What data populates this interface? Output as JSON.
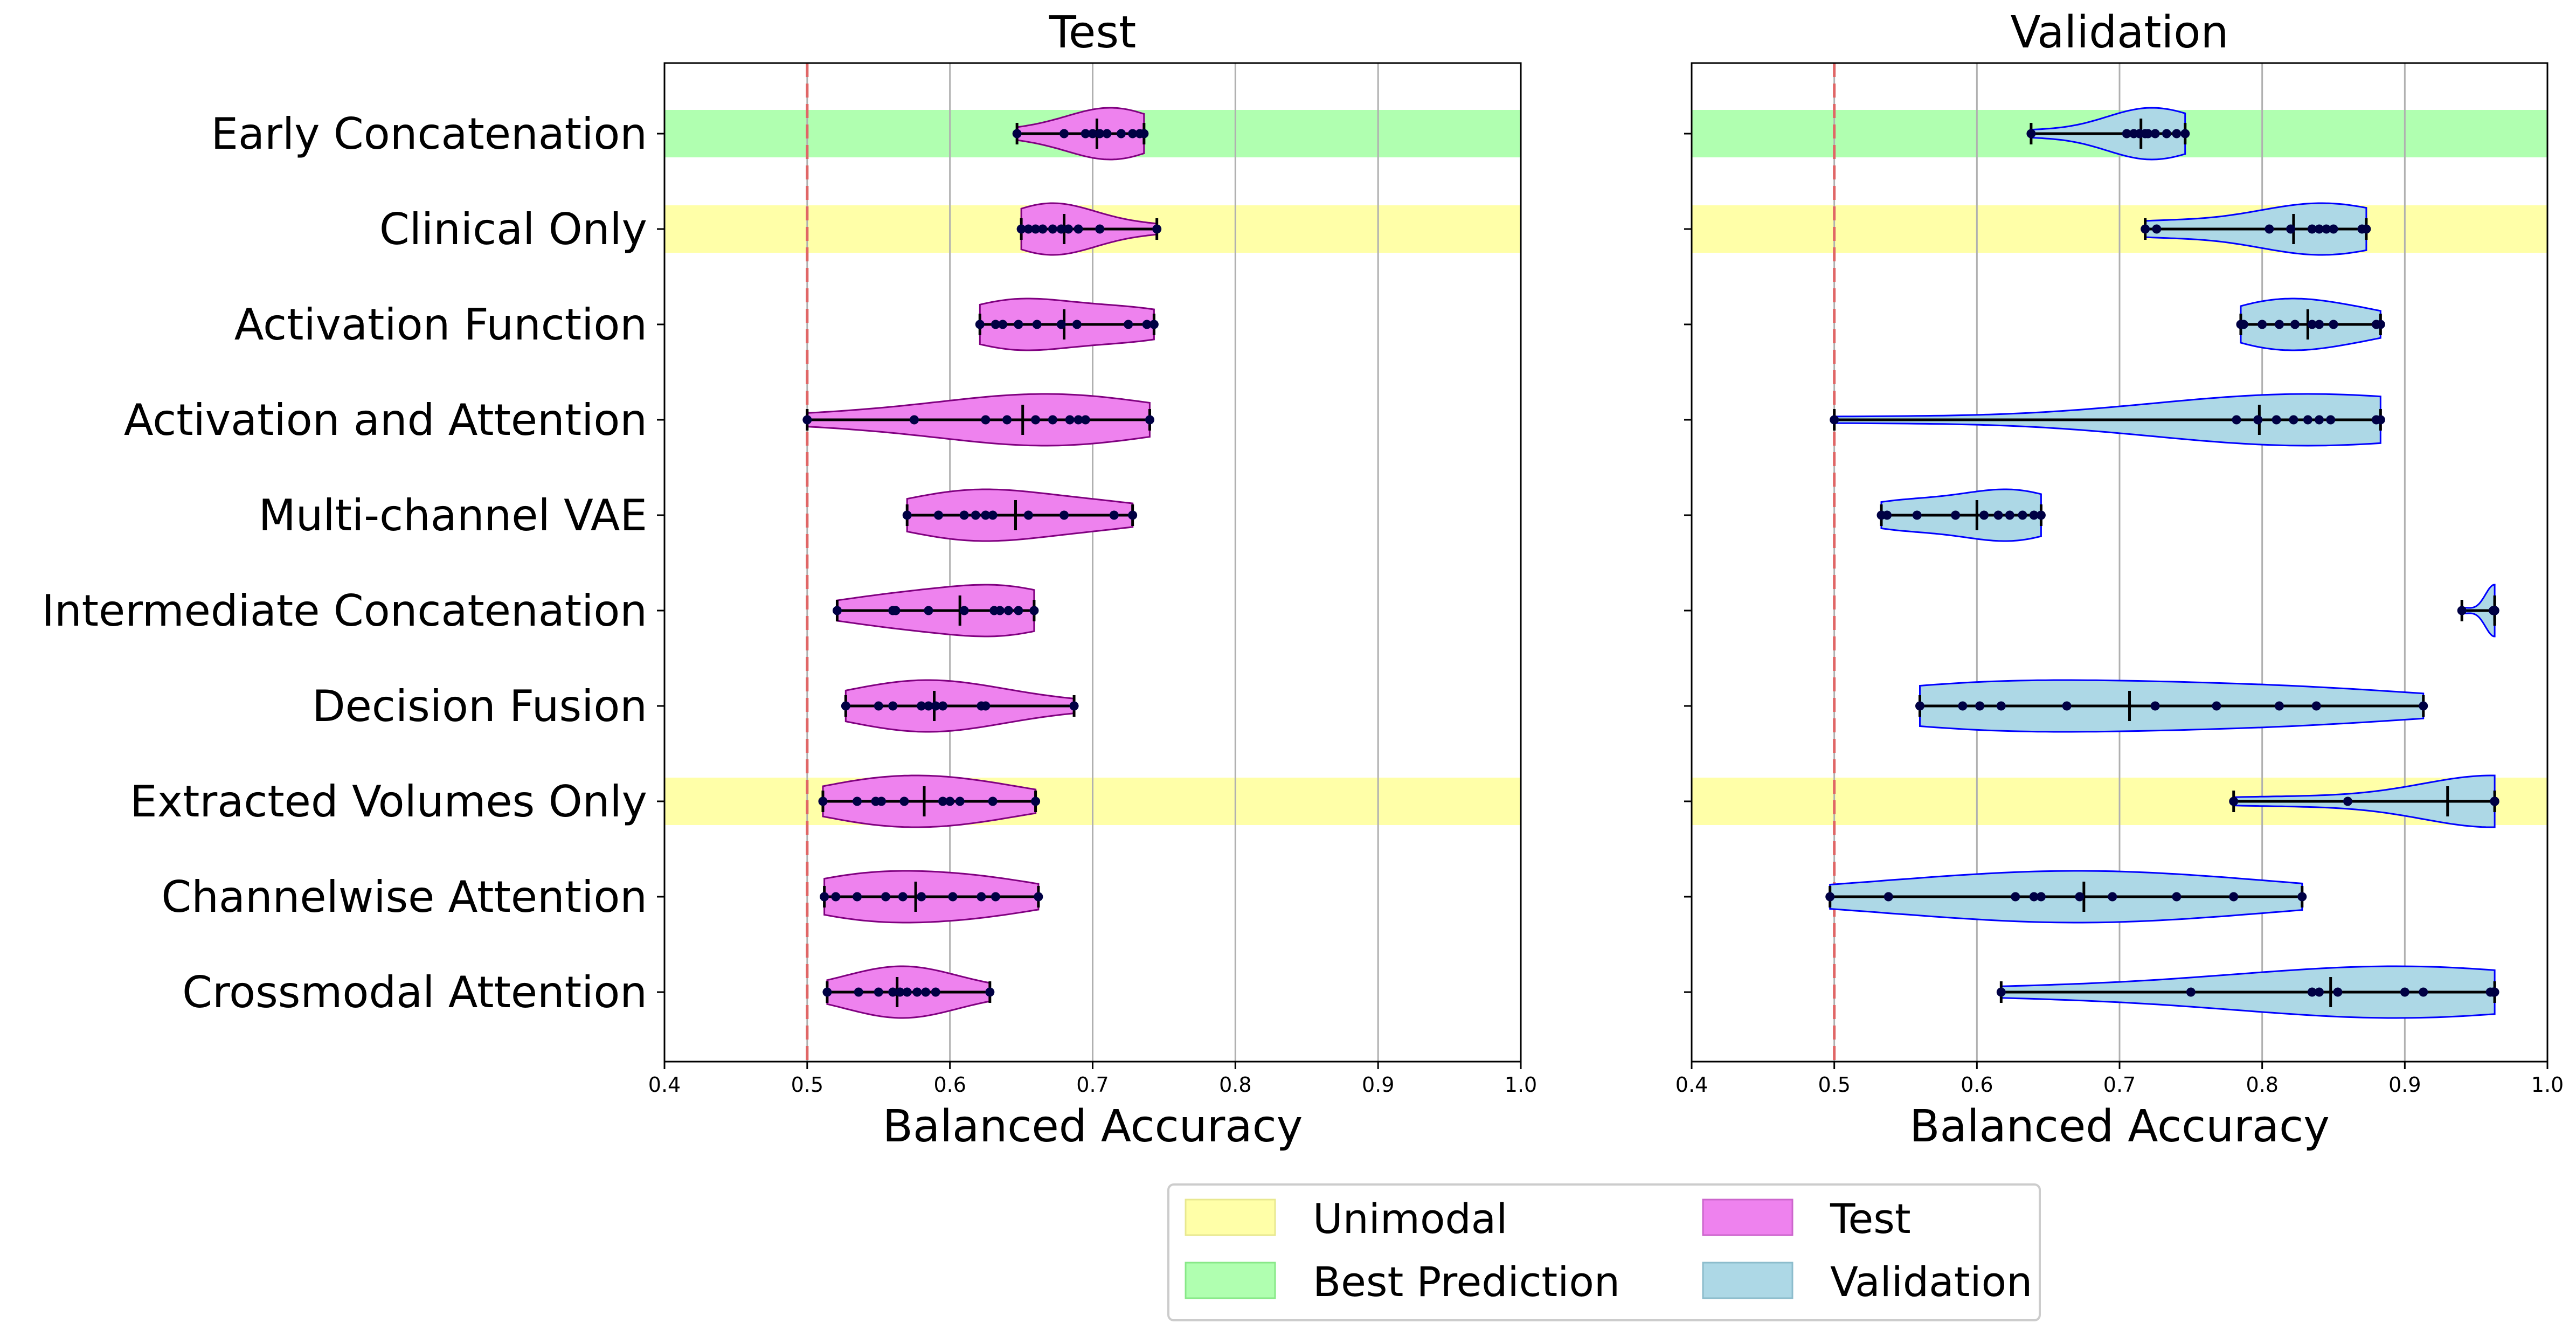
{
  "colors": {
    "unimodal": "#ffffa8",
    "best": "#b0ffb0",
    "test_fill": "#ee82ee",
    "test_edge": "#800080",
    "val_fill": "#add8e6",
    "val_edge": "#0000ff",
    "dots": "#000044",
    "ref_line": "#e06666",
    "grid": "#b0b0b0"
  },
  "chart_data": [
    {
      "type": "violin",
      "title": "Test",
      "xlabel": "Balanced Accuracy",
      "xlim": [
        0.4,
        1.0
      ],
      "xticks": [
        "0.4",
        "0.5",
        "0.6",
        "0.7",
        "0.8",
        "0.9",
        "1.0"
      ],
      "reference_line": 0.5,
      "grid": "vertical",
      "categories": [
        "Early Concatenation",
        "Clinical Only",
        "Activation Function",
        "Activation and Attention",
        "Multi-channel VAE",
        "Intermediate Concatenation",
        "Decision Fusion",
        "Extracted Volumes Only",
        "Channelwise Attention",
        "Crossmodal Attention"
      ],
      "highlights": [
        {
          "category": "Early Concatenation",
          "kind": "best"
        },
        {
          "category": "Clinical Only",
          "kind": "unimodal"
        },
        {
          "category": "Extracted Volumes Only",
          "kind": "unimodal"
        }
      ],
      "series": [
        {
          "category": "Early Concatenation",
          "min": 0.647,
          "max": 0.736,
          "median": 0.703,
          "points": [
            0.647,
            0.68,
            0.695,
            0.7,
            0.705,
            0.71,
            0.72,
            0.728,
            0.733,
            0.736
          ]
        },
        {
          "category": "Clinical Only",
          "min": 0.65,
          "max": 0.745,
          "median": 0.68,
          "points": [
            0.65,
            0.655,
            0.66,
            0.665,
            0.672,
            0.678,
            0.683,
            0.69,
            0.705,
            0.745
          ]
        },
        {
          "category": "Activation Function",
          "min": 0.621,
          "max": 0.743,
          "median": 0.68,
          "points": [
            0.621,
            0.632,
            0.637,
            0.648,
            0.661,
            0.678,
            0.689,
            0.725,
            0.738,
            0.743
          ]
        },
        {
          "category": "Activation and Attention",
          "min": 0.5,
          "max": 0.74,
          "median": 0.651,
          "points": [
            0.5,
            0.575,
            0.625,
            0.64,
            0.66,
            0.672,
            0.684,
            0.69,
            0.695,
            0.74
          ]
        },
        {
          "category": "Multi-channel VAE",
          "min": 0.57,
          "max": 0.728,
          "median": 0.646,
          "points": [
            0.57,
            0.592,
            0.61,
            0.618,
            0.625,
            0.63,
            0.655,
            0.68,
            0.715,
            0.728
          ]
        },
        {
          "category": "Intermediate Concatenation",
          "min": 0.521,
          "max": 0.659,
          "median": 0.607,
          "points": [
            0.521,
            0.56,
            0.562,
            0.585,
            0.61,
            0.631,
            0.635,
            0.641,
            0.648,
            0.659
          ]
        },
        {
          "category": "Decision Fusion",
          "min": 0.527,
          "max": 0.687,
          "median": 0.589,
          "points": [
            0.527,
            0.55,
            0.56,
            0.58,
            0.585,
            0.59,
            0.595,
            0.622,
            0.625,
            0.687
          ]
        },
        {
          "category": "Extracted Volumes Only",
          "min": 0.511,
          "max": 0.66,
          "median": 0.582,
          "points": [
            0.511,
            0.535,
            0.548,
            0.552,
            0.568,
            0.595,
            0.6,
            0.607,
            0.63,
            0.66
          ]
        },
        {
          "category": "Channelwise Attention",
          "min": 0.512,
          "max": 0.662,
          "median": 0.576,
          "points": [
            0.512,
            0.52,
            0.535,
            0.555,
            0.567,
            0.58,
            0.602,
            0.622,
            0.632,
            0.662
          ]
        },
        {
          "category": "Crossmodal Attention",
          "min": 0.514,
          "max": 0.628,
          "median": 0.563,
          "points": [
            0.514,
            0.536,
            0.55,
            0.56,
            0.565,
            0.57,
            0.577,
            0.583,
            0.59,
            0.628
          ]
        }
      ]
    },
    {
      "type": "violin",
      "title": "Validation",
      "xlabel": "Balanced Accuracy",
      "xlim": [
        0.4,
        1.0
      ],
      "xticks": [
        "0.4",
        "0.5",
        "0.6",
        "0.7",
        "0.8",
        "0.9",
        "1.0"
      ],
      "reference_line": 0.5,
      "grid": "vertical",
      "categories": [
        "Early Concatenation",
        "Clinical Only",
        "Activation Function",
        "Activation and Attention",
        "Multi-channel VAE",
        "Intermediate Concatenation",
        "Decision Fusion",
        "Extracted Volumes Only",
        "Channelwise Attention",
        "Crossmodal Attention"
      ],
      "highlights": [
        {
          "category": "Early Concatenation",
          "kind": "best"
        },
        {
          "category": "Clinical Only",
          "kind": "unimodal"
        },
        {
          "category": "Extracted Volumes Only",
          "kind": "unimodal"
        }
      ],
      "series": [
        {
          "category": "Early Concatenation",
          "min": 0.638,
          "max": 0.746,
          "median": 0.715,
          "points": [
            0.638,
            0.705,
            0.71,
            0.714,
            0.718,
            0.72,
            0.725,
            0.733,
            0.74,
            0.746
          ]
        },
        {
          "category": "Clinical Only",
          "min": 0.718,
          "max": 0.873,
          "median": 0.822,
          "points": [
            0.718,
            0.726,
            0.805,
            0.82,
            0.835,
            0.84,
            0.845,
            0.85,
            0.87,
            0.873
          ]
        },
        {
          "category": "Activation Function",
          "min": 0.785,
          "max": 0.883,
          "median": 0.832,
          "points": [
            0.785,
            0.787,
            0.8,
            0.812,
            0.823,
            0.835,
            0.84,
            0.85,
            0.88,
            0.883
          ]
        },
        {
          "category": "Activation and Attention",
          "min": 0.5,
          "max": 0.883,
          "median": 0.798,
          "points": [
            0.5,
            0.782,
            0.797,
            0.81,
            0.822,
            0.832,
            0.84,
            0.848,
            0.88,
            0.883
          ]
        },
        {
          "category": "Multi-channel VAE",
          "min": 0.533,
          "max": 0.645,
          "median": 0.6,
          "points": [
            0.533,
            0.537,
            0.558,
            0.585,
            0.605,
            0.615,
            0.623,
            0.632,
            0.64,
            0.645
          ]
        },
        {
          "category": "Intermediate Concatenation",
          "min": 0.94,
          "max": 0.963,
          "median": 0.963,
          "points": [
            0.94,
            0.962,
            0.963,
            0.963,
            0.963,
            0.963,
            0.963,
            0.963,
            0.963,
            0.963
          ]
        },
        {
          "category": "Decision Fusion",
          "min": 0.56,
          "max": 0.913,
          "median": 0.707,
          "points": [
            0.56,
            0.59,
            0.602,
            0.617,
            0.663,
            0.725,
            0.768,
            0.812,
            0.838,
            0.913
          ]
        },
        {
          "category": "Extracted Volumes Only",
          "min": 0.78,
          "max": 0.963,
          "median": 0.93,
          "points": [
            0.78,
            0.86,
            0.963,
            0.963,
            0.963,
            0.963,
            0.963,
            0.963,
            0.963,
            0.963
          ]
        },
        {
          "category": "Channelwise Attention",
          "min": 0.497,
          "max": 0.828,
          "median": 0.675,
          "points": [
            0.497,
            0.538,
            0.627,
            0.64,
            0.645,
            0.672,
            0.695,
            0.74,
            0.78,
            0.828
          ]
        },
        {
          "category": "Crossmodal Attention",
          "min": 0.617,
          "max": 0.963,
          "median": 0.848,
          "points": [
            0.617,
            0.75,
            0.835,
            0.84,
            0.853,
            0.9,
            0.913,
            0.96,
            0.962,
            0.963
          ]
        }
      ]
    }
  ],
  "legend": {
    "placement": "bottom-center",
    "items": [
      {
        "label": "Unimodal",
        "color_key": "unimodal"
      },
      {
        "label": "Best Prediction",
        "color_key": "best"
      },
      {
        "label": "Test",
        "color_key": "test_fill"
      },
      {
        "label": "Validation",
        "color_key": "val_fill"
      }
    ]
  }
}
